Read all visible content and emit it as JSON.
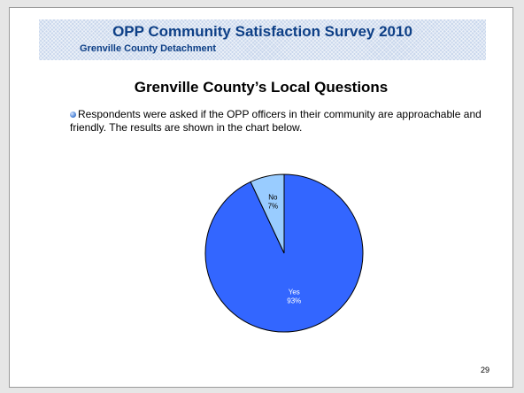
{
  "header": {
    "title": "OPP Community Satisfaction Survey 2010",
    "subtitle": "Grenville County Detachment"
  },
  "section": {
    "heading": "Grenville County’s Local Questions"
  },
  "body": {
    "text": "Respondents were asked if the OPP officers in their community are approachable and friendly.  The results are shown in the chart below."
  },
  "chart_data": {
    "type": "pie",
    "title": "",
    "categories": [
      "Yes",
      "No"
    ],
    "values": [
      93,
      7
    ],
    "labels": [
      "Yes\n93%",
      "No\n7%"
    ],
    "colors": [
      "#3366ff",
      "#99ccff"
    ],
    "label_colors": [
      "#ffffff",
      "#000000"
    ],
    "start_angle_deg": 0,
    "legend": "none"
  },
  "footer": {
    "page_number": "29"
  }
}
